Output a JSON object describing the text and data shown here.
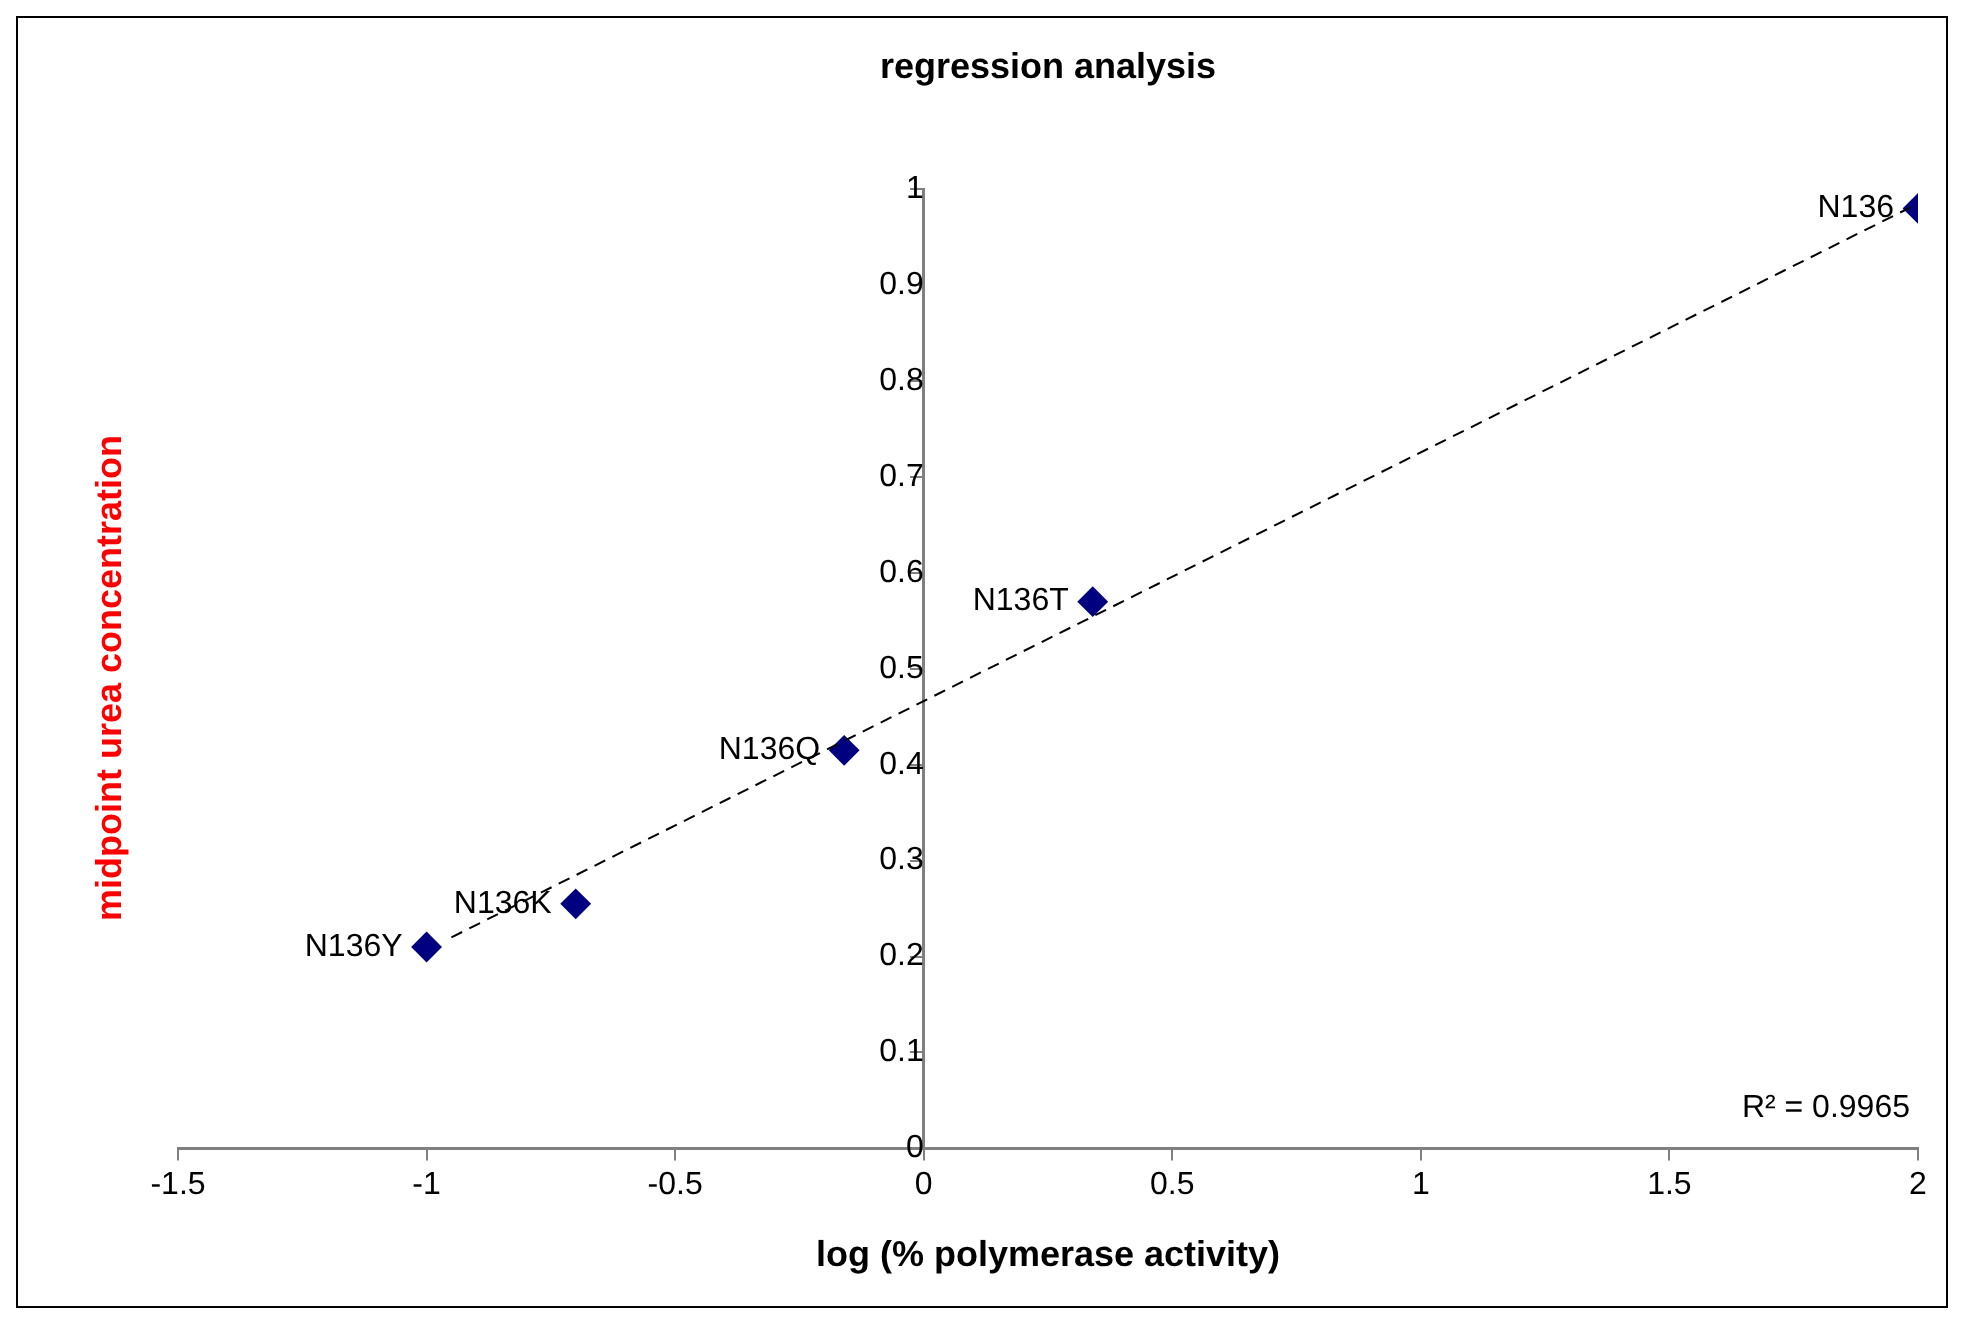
{
  "chart_data": {
    "type": "scatter",
    "title": "regression analysis",
    "xlabel": "log (% polymerase activity)",
    "ylabel": "midpoint urea concentration",
    "xlim": [
      -1.5,
      2
    ],
    "xticks": [
      -1.5,
      -1,
      -0.5,
      0,
      0.5,
      1,
      1.5,
      2
    ],
    "ylim": [
      0,
      1
    ],
    "yticks": [
      0,
      0.1,
      0.2,
      0.3,
      0.4,
      0.5,
      0.6,
      0.7,
      0.8,
      0.9,
      1
    ],
    "grid": false,
    "marker": "diamond",
    "series": [
      {
        "type": "scatter",
        "color": "#000080",
        "x": [
          -1.0,
          -0.7,
          -0.16,
          0.34,
          2.0
        ],
        "values": [
          0.21,
          0.255,
          0.415,
          0.57,
          0.98
        ],
        "value_labels": [
          "N136Y",
          "N136K",
          "N136Q",
          "N136T",
          "N136"
        ]
      },
      {
        "type": "line",
        "color": "#000000",
        "line_style": "dashed",
        "marker": "none",
        "x": [
          -0.95,
          2.0
        ],
        "values": [
          0.22,
          0.985
        ]
      }
    ],
    "annotations": [
      "R² = 0.9965"
    ]
  }
}
